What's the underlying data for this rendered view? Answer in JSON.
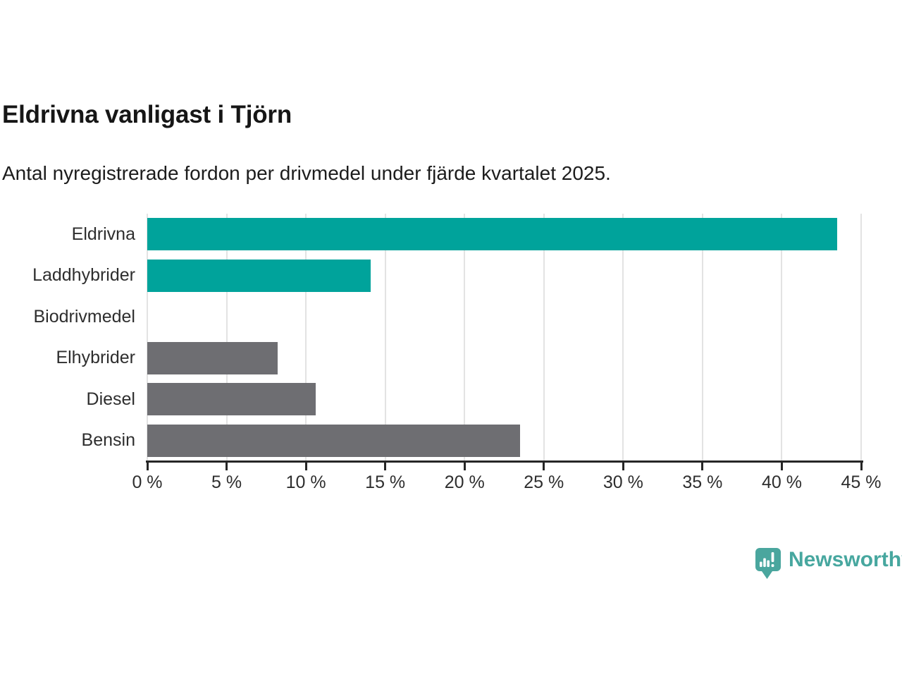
{
  "header": {
    "title": "Eldrivna vanligast i Tjörn",
    "subtitle": "Antal nyregistrerade fordon per drivmedel under fjärde kvartalet 2025."
  },
  "chart_data": {
    "type": "bar",
    "orientation": "horizontal",
    "title": "Eldrivna vanligast i Tjörn",
    "subtitle": "Antal nyregistrerade fordon per drivmedel under fjärde kvartalet 2025.",
    "categories": [
      "Eldrivna",
      "Laddhybrider",
      "Biodrivmedel",
      "Elhybrider",
      "Diesel",
      "Bensin"
    ],
    "values": [
      43.5,
      14.1,
      0,
      8.2,
      10.6,
      23.5
    ],
    "unit": "%",
    "bar_colors": [
      "#00a39b",
      "#00a39b",
      "#6e6e72",
      "#6e6e72",
      "#6e6e72",
      "#6e6e72"
    ],
    "xlim": [
      0,
      45
    ],
    "xticks": [
      {
        "value": 0,
        "label": "0 %"
      },
      {
        "value": 5,
        "label": "5 %"
      },
      {
        "value": 10,
        "label": "10 %"
      },
      {
        "value": 15,
        "label": "15 %"
      },
      {
        "value": 20,
        "label": "20 %"
      },
      {
        "value": 25,
        "label": "25 %"
      },
      {
        "value": 30,
        "label": "30 %"
      },
      {
        "value": 35,
        "label": "35 %"
      },
      {
        "value": 40,
        "label": "40 %"
      },
      {
        "value": 45,
        "label": "45 %"
      }
    ],
    "grid": true,
    "legend": "none",
    "xlabel": "",
    "ylabel": ""
  },
  "colors": {
    "accent_teal": "#00a39b",
    "neutral_gray": "#6e6e72",
    "gridline": "#e3e3e3",
    "axis": "#262626",
    "text": "#2e2e2e"
  },
  "footer": {
    "brand": "Newsworthy",
    "brand_color": "#47a79f"
  }
}
